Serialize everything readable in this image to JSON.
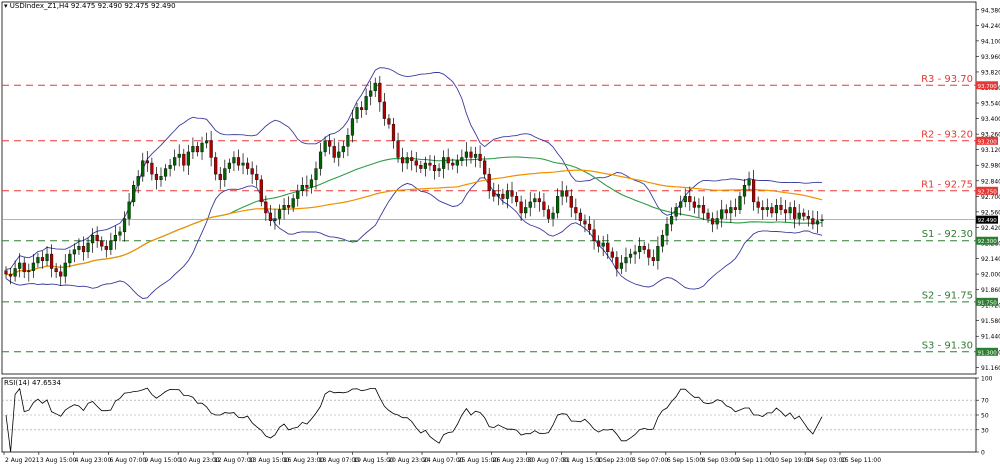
{
  "header": {
    "symbol_line": "USDIndex_Z1,H4  92.475 92.490 92.475 92.490"
  },
  "rsi_header": {
    "label": "RSI(14) 47.6534"
  },
  "chart_data": {
    "type": "candlestick",
    "y_ticks": [
      "94.380",
      "94.240",
      "94.100",
      "93.960",
      "93.820",
      "93.680",
      "93.540",
      "93.400",
      "93.260",
      "93.120",
      "92.980",
      "92.840",
      "92.700",
      "92.560",
      "92.420",
      "92.280",
      "92.140",
      "92.000",
      "91.860",
      "91.720",
      "91.580",
      "91.440",
      "91.300",
      "91.160"
    ],
    "ylim": [
      91.1,
      94.45
    ],
    "x_labels": [
      "2 Aug 2021",
      "3 Aug 15:00",
      "4 Aug 23:00",
      "6 Aug 07:00",
      "9 Aug 15:00",
      "10 Aug 23:00",
      "12 Aug 07:00",
      "13 Aug 15:00",
      "16 Aug 23:00",
      "18 Aug 07:00",
      "19 Aug 15:00",
      "20 Aug 23:00",
      "24 Aug 07:00",
      "25 Aug 15:00",
      "26 Aug 23:00",
      "30 Aug 07:00",
      "31 Aug 15:00",
      "1 Sep 23:00",
      "3 Sep 07:00",
      "6 Sep 15:00",
      "8 Sep 03:00",
      "9 Sep 11:00",
      "10 Sep 19:00",
      "14 Sep 03:00",
      "15 Sep 11:00"
    ],
    "current_price": {
      "value": 92.49,
      "label": "92.490"
    },
    "levels": [
      {
        "name": "R3 - 93.70",
        "value": 93.7,
        "tag": "93.700",
        "color": "#e53935"
      },
      {
        "name": "R2 - 93.20",
        "value": 93.2,
        "tag": "93.200",
        "color": "#e53935"
      },
      {
        "name": "R1 - 92.75",
        "value": 92.75,
        "tag": "92.750",
        "color": "#e53935"
      },
      {
        "name": "S1 - 92.30",
        "value": 92.3,
        "tag": "92.300",
        "color": "#2e7d32"
      },
      {
        "name": "S2 - 91.75",
        "value": 91.75,
        "tag": "91.750",
        "color": "#2e7d32"
      },
      {
        "name": "S3 - 91.30",
        "value": 91.3,
        "tag": "91.300",
        "color": "#2e7d32"
      }
    ],
    "closes": [
      92.0,
      91.98,
      92.05,
      92.1,
      92.02,
      92.03,
      92.1,
      92.15,
      92.12,
      92.18,
      92.05,
      92.02,
      91.98,
      92.1,
      92.18,
      92.22,
      92.25,
      92.2,
      92.28,
      92.35,
      92.3,
      92.25,
      92.22,
      92.3,
      92.35,
      92.38,
      92.5,
      92.65,
      92.8,
      92.88,
      93.02,
      93.0,
      92.9,
      92.85,
      92.88,
      92.95,
      92.98,
      93.05,
      93.08,
      92.98,
      93.1,
      93.15,
      93.1,
      93.18,
      93.2,
      93.05,
      92.9,
      92.85,
      92.95,
      93.0,
      93.05,
      92.98,
      93.0,
      92.95,
      92.9,
      92.85,
      92.65,
      92.55,
      92.48,
      92.5,
      92.58,
      92.62,
      92.6,
      92.68,
      92.75,
      92.8,
      92.78,
      92.85,
      92.95,
      93.1,
      93.2,
      93.15,
      93.05,
      93.1,
      93.15,
      93.25,
      93.4,
      93.5,
      93.48,
      93.6,
      93.65,
      93.72,
      93.55,
      93.4,
      93.35,
      93.2,
      93.05,
      93.0,
      93.05,
      93.02,
      92.98,
      92.95,
      93.0,
      92.98,
      92.93,
      92.95,
      93.05,
      93.0,
      92.98,
      93.02,
      93.05,
      93.1,
      93.05,
      93.08,
      93.02,
      92.9,
      92.75,
      92.7,
      92.72,
      92.68,
      92.75,
      92.7,
      92.65,
      92.55,
      92.6,
      92.65,
      92.68,
      92.65,
      92.58,
      92.5,
      92.55,
      92.7,
      92.75,
      92.7,
      92.6,
      92.55,
      92.48,
      92.45,
      92.4,
      92.3,
      92.25,
      92.28,
      92.2,
      92.15,
      92.05,
      92.1,
      92.15,
      92.18,
      92.2,
      92.25,
      92.22,
      92.15,
      92.12,
      92.25,
      92.35,
      92.45,
      92.52,
      92.6,
      92.65,
      92.7,
      92.65,
      92.6,
      92.62,
      92.55,
      92.5,
      92.45,
      92.5,
      92.58,
      92.55,
      92.6,
      92.58,
      92.7,
      92.8,
      92.85,
      92.65,
      92.6,
      92.58,
      92.6,
      92.55,
      92.62,
      92.58,
      92.55,
      92.6,
      92.5,
      92.55,
      92.52,
      92.5,
      92.45,
      92.48,
      92.49
    ],
    "sma_green_period": 50,
    "sma_orange_period": 100,
    "bollinger": {
      "period": 20,
      "stdev": 2
    },
    "rsi": {
      "period": 14,
      "value": 47.6534,
      "levels": [
        30,
        50,
        70
      ],
      "ticks": [
        "100",
        "70",
        "50",
        "30",
        "0"
      ],
      "ylim": [
        0,
        100
      ]
    },
    "colors": {
      "up": "#006400",
      "down": "#b00000",
      "bands": "#3a3a9c",
      "sma_green": "#2e9c47",
      "sma_orange": "#f29100",
      "current": "#9a9a9a"
    }
  }
}
